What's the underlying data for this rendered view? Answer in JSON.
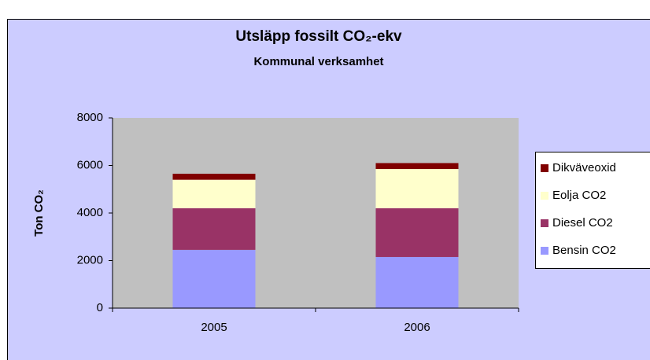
{
  "chart_data": {
    "type": "stacked_bar",
    "title": "Utsläpp fossilt CO₂-ekv",
    "subtitle": "Kommunal verksamhet",
    "y_label": "Ton CO₂",
    "categories": [
      "2005",
      "2006"
    ],
    "series": [
      {
        "name": "Bensin CO2",
        "color": "#9999ff",
        "values": [
          2450,
          2150
        ]
      },
      {
        "name": "Diesel CO2",
        "color": "#993366",
        "values": [
          1750,
          2050
        ]
      },
      {
        "name": "Eolja CO2",
        "color": "#ffffcc",
        "values": [
          1200,
          1650
        ]
      },
      {
        "name": "Dikväveoxid",
        "color": "#800000",
        "values": [
          250,
          250
        ]
      }
    ],
    "ylim": [
      0,
      8000
    ],
    "yticks": [
      0,
      2000,
      4000,
      6000,
      8000
    ],
    "grid": false
  }
}
